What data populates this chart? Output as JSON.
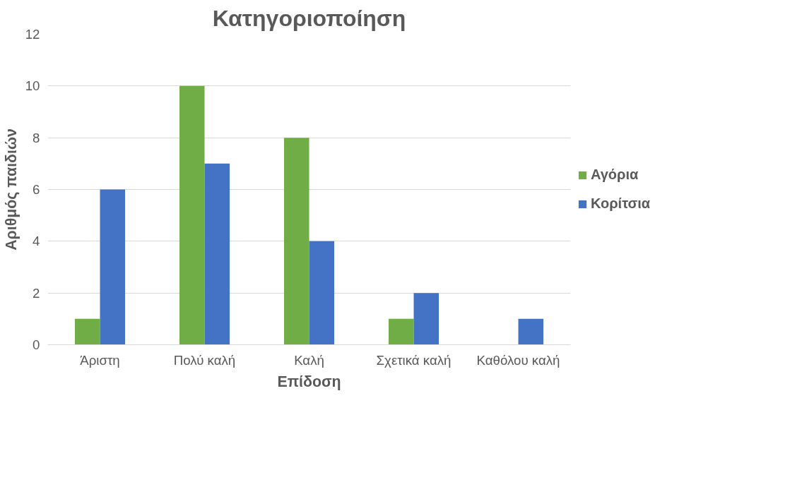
{
  "chart_data": {
    "type": "bar",
    "title": "Κατηγοριοποίηση",
    "xlabel": "Επίδοση",
    "ylabel": "Αριθμός παιδιών",
    "categories": [
      "Άριστη",
      "Πολύ καλή",
      "Καλή",
      "Σχετικά καλή",
      "Καθόλου καλή"
    ],
    "series": [
      {
        "name": "Αγόρια",
        "color": "#70ad47",
        "values": [
          1,
          10,
          8,
          1,
          0
        ]
      },
      {
        "name": "Κορίτσια",
        "color": "#4472c4",
        "values": [
          6,
          7,
          4,
          2,
          1
        ]
      }
    ],
    "ylim": [
      0,
      12
    ],
    "yticks": [
      0,
      2,
      4,
      6,
      8,
      10,
      12
    ],
    "grid": "y",
    "legend": "right"
  }
}
